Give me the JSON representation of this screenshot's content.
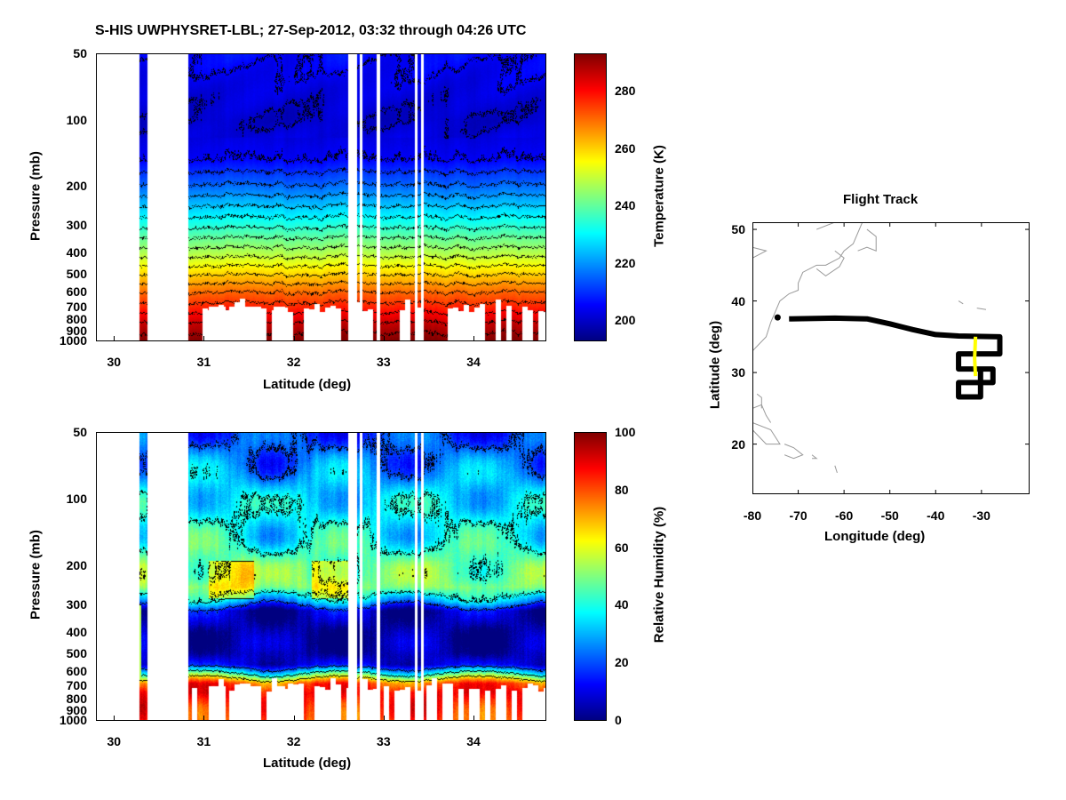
{
  "title": "S-HIS UWPHYSRET-LBL;   27-Sep-2012, 03:32 through 04:26 UTC",
  "chart_data": [
    {
      "type": "heatmap",
      "name": "temperature",
      "xlabel": "Latitude (deg)",
      "ylabel": "Pressure (mb)",
      "xlim": [
        29.8,
        34.8
      ],
      "xticks": [
        30,
        31,
        32,
        33,
        34
      ],
      "ylim": [
        50,
        1000
      ],
      "yscale": "log",
      "yticks": [
        50,
        100,
        200,
        300,
        400,
        500,
        600,
        700,
        800,
        900,
        1000
      ],
      "colorbar_label": "Temperature (K)",
      "clim": [
        193,
        293
      ],
      "cticks": [
        200,
        220,
        240,
        260,
        280
      ],
      "profile_pressure": [
        50,
        70,
        100,
        150,
        200,
        250,
        300,
        400,
        500,
        600,
        700,
        850,
        1000
      ],
      "profile_values": [
        206,
        203,
        200,
        205,
        216,
        226,
        234,
        248,
        260,
        270,
        277,
        287,
        293
      ],
      "missing_lat_ranges": [
        [
          29.8,
          30.28
        ],
        [
          30.37,
          30.82
        ],
        [
          32.6,
          32.7
        ],
        [
          32.73,
          32.76
        ],
        [
          32.92,
          32.96
        ],
        [
          33.34,
          33.37
        ],
        [
          33.41,
          33.44
        ]
      ]
    },
    {
      "type": "heatmap",
      "name": "relative_humidity",
      "xlabel": "Latitude (deg)",
      "ylabel": "Pressure (mb)",
      "xlim": [
        29.8,
        34.8
      ],
      "xticks": [
        30,
        31,
        32,
        33,
        34
      ],
      "ylim": [
        50,
        1000
      ],
      "yscale": "log",
      "yticks": [
        50,
        100,
        200,
        300,
        400,
        500,
        600,
        700,
        800,
        900,
        1000
      ],
      "colorbar_label": "Relative Humidity (%)",
      "clim": [
        0,
        100
      ],
      "cticks": [
        0,
        20,
        40,
        60,
        80,
        100
      ],
      "profile_pressure": [
        50,
        70,
        100,
        150,
        200,
        250,
        290,
        320,
        400,
        500,
        560,
        620,
        680,
        750,
        850,
        1000
      ],
      "profile_values": [
        18,
        25,
        35,
        38,
        48,
        50,
        30,
        6,
        3,
        4,
        10,
        45,
        80,
        88,
        85,
        80
      ],
      "missing_lat_ranges": [
        [
          29.8,
          30.28
        ],
        [
          30.37,
          30.82
        ],
        [
          32.6,
          32.7
        ],
        [
          32.73,
          32.76
        ],
        [
          32.92,
          32.96
        ],
        [
          33.34,
          33.37
        ],
        [
          33.41,
          33.44
        ]
      ]
    },
    {
      "type": "line",
      "name": "flight_track",
      "title": "Flight Track",
      "xlabel": "Longitude (deg)",
      "ylabel": "Latitude (deg)",
      "xlim": [
        -80,
        -19.5
      ],
      "ylim": [
        13,
        51
      ],
      "xticks": [
        -80,
        -70,
        -60,
        -50,
        -40,
        -30
      ],
      "yticks": [
        20,
        30,
        40,
        50
      ],
      "start_point": [
        -74.5,
        37.7
      ],
      "track": [
        [
          -72,
          37.5
        ],
        [
          -62,
          37.6
        ],
        [
          -55,
          37.5
        ],
        [
          -50,
          36.8
        ],
        [
          -45,
          36
        ],
        [
          -40,
          35.3
        ],
        [
          -35,
          35.1
        ],
        [
          -26,
          35
        ],
        [
          -26,
          32.6
        ],
        [
          -35,
          32.6
        ],
        [
          -35,
          30.5
        ],
        [
          -27.5,
          30.5
        ],
        [
          -27.5,
          28.6
        ],
        [
          -35,
          28.6
        ],
        [
          -35,
          26.6
        ],
        [
          -30.2,
          26.6
        ],
        [
          -30.2,
          30.5
        ]
      ],
      "segment_highlight": [
        [
          -31.3,
          35
        ],
        [
          -31.5,
          32
        ],
        [
          -31.3,
          29.5
        ]
      ],
      "colors": {
        "track": "#000000",
        "highlight": "#ffff00",
        "coast": "#999999"
      }
    }
  ]
}
